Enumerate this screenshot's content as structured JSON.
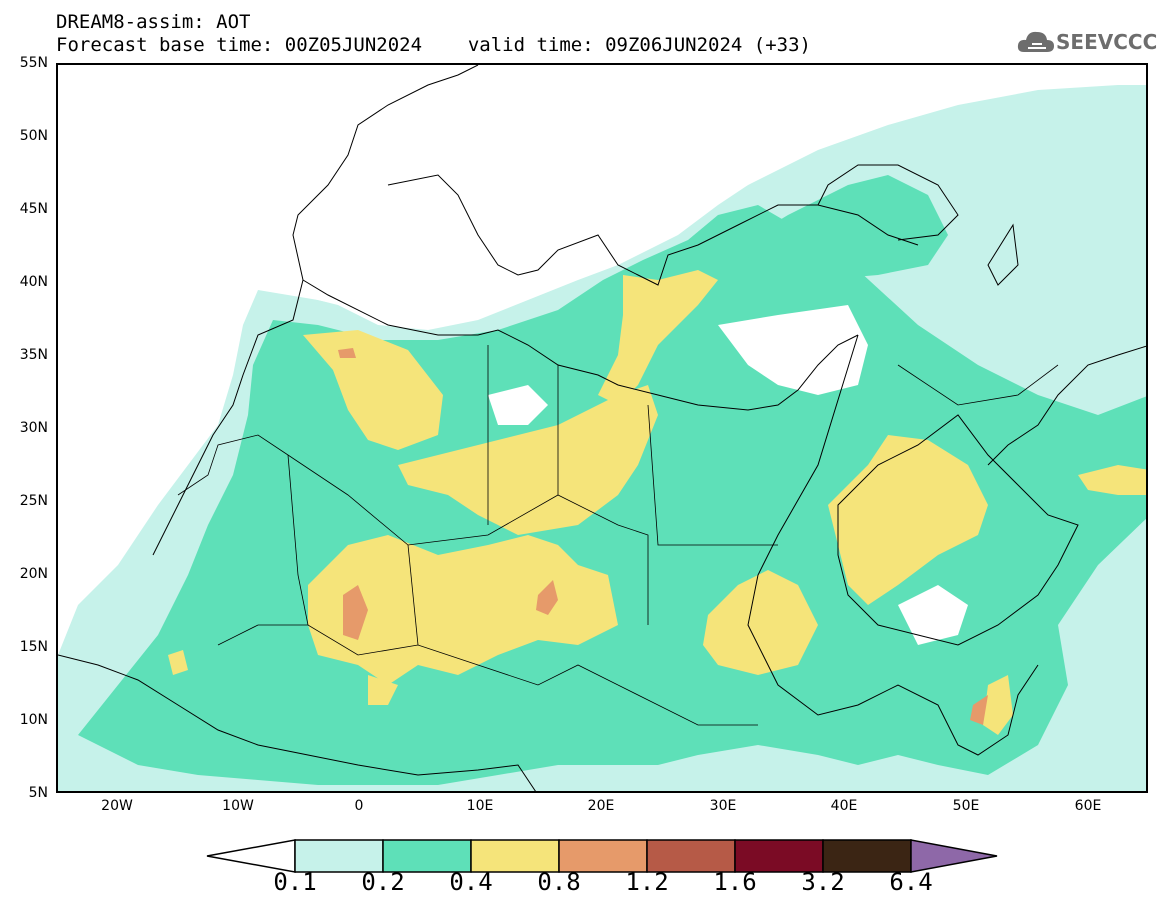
{
  "header": {
    "title": "DREAM8-assim: AOT",
    "base_time_label": "Forecast base time: 00Z05JUN2024",
    "valid_time_label": "valid time: 09Z06JUN2024 (+33)"
  },
  "logo": {
    "text": "SEEVCCC",
    "icon": "cloud-icon"
  },
  "map": {
    "lat_ticks": [
      "55N",
      "50N",
      "45N",
      "40N",
      "35N",
      "30N",
      "25N",
      "20N",
      "15N",
      "10N",
      "5N"
    ],
    "lon_ticks": [
      "20W",
      "10W",
      "0",
      "10E",
      "20E",
      "30E",
      "40E",
      "50E",
      "60E"
    ],
    "lat_range": [
      5,
      55
    ],
    "lon_range": [
      -25,
      65
    ]
  },
  "colorbar": {
    "levels": [
      "0.1",
      "0.2",
      "0.4",
      "0.8",
      "1.2",
      "1.6",
      "3.2",
      "6.4"
    ],
    "colors": [
      "#c6f2ea",
      "#5ee0b8",
      "#f5e47a",
      "#e69a6a",
      "#b65a47",
      "#7b0b25",
      "#3b2514",
      "#8e68a8"
    ],
    "under_color": "#ffffff"
  }
}
